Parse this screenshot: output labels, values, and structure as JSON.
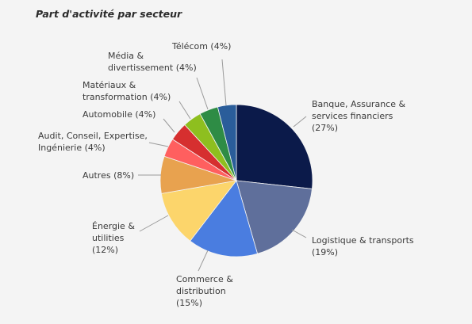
{
  "chart_data": {
    "type": "pie",
    "title": "Part d'activité par secteur",
    "series": [
      {
        "slices": [
          {
            "label": [
              "Banque, Assurance &",
              "services financiers",
              "(27%)"
            ],
            "value": 27,
            "color": "#0b1a4a"
          },
          {
            "label": [
              "Logistique & transports",
              "(19%)"
            ],
            "value": 19,
            "color": "#5f6f9b"
          },
          {
            "label": [
              "Commerce &",
              "distribution",
              "(15%)"
            ],
            "value": 15,
            "color": "#4a7de0"
          },
          {
            "label": [
              "Énergie &",
              "utilities",
              "(12%)"
            ],
            "value": 12,
            "color": "#fcd56b"
          },
          {
            "label": [
              "Autres (8%)"
            ],
            "value": 8,
            "color": "#e8a24f"
          },
          {
            "label": [
              "Audit, Conseil, Expertise,",
              "Ingénierie (4%)"
            ],
            "value": 4,
            "color": "#ff5f5f"
          },
          {
            "label": [
              "Automobile (4%)"
            ],
            "value": 4,
            "color": "#d62f2f"
          },
          {
            "label": [
              "Matériaux &",
              "transformation (4%)"
            ],
            "value": 4,
            "color": "#8ebf1f"
          },
          {
            "label": [
              "Média &",
              "divertissement (4%)"
            ],
            "value": 4,
            "color": "#2e8c45"
          },
          {
            "label": [
              "Télécom (4%)"
            ],
            "value": 4,
            "color": "#2a5d9a"
          }
        ]
      }
    ]
  }
}
